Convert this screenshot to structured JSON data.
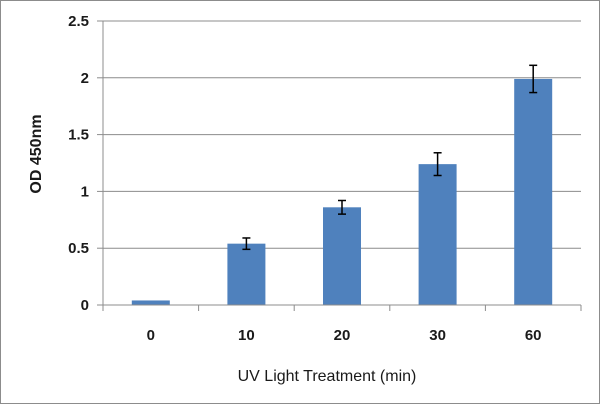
{
  "chart_data": {
    "type": "bar",
    "title": "",
    "xlabel": "UV Light Treatment (min)",
    "ylabel": "OD 450nm",
    "categories": [
      "0",
      "10",
      "20",
      "30",
      "60"
    ],
    "series": [
      {
        "values": [
          0.04,
          0.54,
          0.86,
          1.24,
          1.99
        ],
        "error": [
          0.0,
          0.05,
          0.06,
          0.1,
          0.12
        ]
      }
    ],
    "ylim": [
      0,
      2.5
    ],
    "yticks": [
      0,
      0.5,
      1,
      1.5,
      2,
      2.5
    ],
    "ytick_labels": [
      "0",
      "0.5",
      "1",
      "1.5",
      "2",
      "2.5"
    ],
    "grid": true,
    "legend": "none",
    "colors": {
      "bar": "#4f81bd",
      "grid": "#8c8c8c",
      "axis": "#8c8c8c",
      "error_bar": "#000000"
    }
  }
}
